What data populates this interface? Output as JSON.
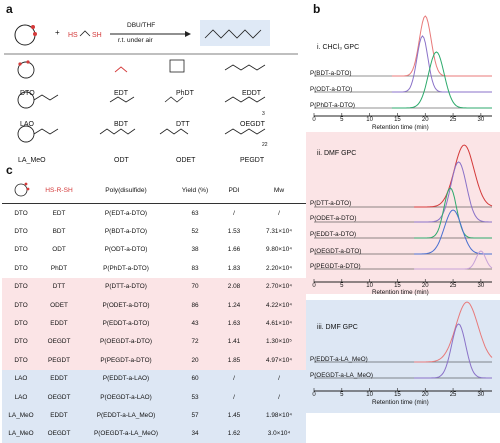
{
  "panel_a": {
    "label": "a",
    "conditions_top": "DBU/THF",
    "conditions_bottom": "r.t. under air",
    "plus": "+",
    "reagent_generic": "HS  R  SH",
    "monomers": [
      "DTO",
      "LAO",
      "LA_MeO"
    ],
    "dithiols": [
      "EDT",
      "PhDT",
      "EDDT",
      "BDT",
      "DTT",
      "OEGDT",
      "ODT",
      "ODET",
      "PEGDT"
    ],
    "peg_subscript": "22",
    "oeg_subscript": "3"
  },
  "panel_c": {
    "label": "c",
    "headers": [
      "",
      "HS‑R‑SH",
      "Poly(disulfide)",
      "Yield (%)",
      "PDI",
      "Mw"
    ],
    "rows": [
      {
        "m": "DTO",
        "d": "EDT",
        "p": "P(EDT-a-DTO)",
        "y": "63",
        "pdi": "/",
        "mw": "/"
      },
      {
        "m": "DTO",
        "d": "BDT",
        "p": "P(BDT-a-DTO)",
        "y": "52",
        "pdi": "1.53",
        "mw": "7.31×10⁴"
      },
      {
        "m": "DTO",
        "d": "ODT",
        "p": "P(ODT-a-DTO)",
        "y": "38",
        "pdi": "1.66",
        "mw": "9.80×10⁴"
      },
      {
        "m": "DTO",
        "d": "PhDT",
        "p": "P(PhDT-a-DTO)",
        "y": "83",
        "pdi": "1.83",
        "mw": "2.20×10⁴"
      },
      {
        "m": "DTO",
        "d": "DTT",
        "p": "P(DTT-a-DTO)",
        "y": "70",
        "pdi": "2.08",
        "mw": "2.70×10⁴"
      },
      {
        "m": "DTO",
        "d": "ODET",
        "p": "P(ODET-a-DTO)",
        "y": "86",
        "pdi": "1.24",
        "mw": "4.22×10⁴"
      },
      {
        "m": "DTO",
        "d": "EDDT",
        "p": "P(EDDT-a-DTO)",
        "y": "43",
        "pdi": "1.63",
        "mw": "4.61×10⁴"
      },
      {
        "m": "DTO",
        "d": "OEGDT",
        "p": "P(OEGDT-a-DTO)",
        "y": "72",
        "pdi": "1.41",
        "mw": "1.30×10⁵"
      },
      {
        "m": "DTO",
        "d": "PEGDT",
        "p": "P(PEGDT-a-DTO)",
        "y": "20",
        "pdi": "1.85",
        "mw": "4.97×10⁴"
      },
      {
        "m": "LAO",
        "d": "EDDT",
        "p": "P(EDDT-a-LAO)",
        "y": "60",
        "pdi": "/",
        "mw": "/"
      },
      {
        "m": "LAO",
        "d": "OEGDT",
        "p": "P(OEGDT-a-LAO)",
        "y": "53",
        "pdi": "/",
        "mw": "/"
      },
      {
        "m": "LA_MeO",
        "d": "EDDT",
        "p": "P(EDDT-a-LA_MeO)",
        "y": "57",
        "pdi": "1.45",
        "mw": "1.98×10⁴"
      },
      {
        "m": "LA_MeO",
        "d": "OEGDT",
        "p": "P(OEGDT-a-LA_MeO)",
        "y": "34",
        "pdi": "1.62",
        "mw": "3.0×10⁴"
      }
    ]
  },
  "panel_b": {
    "label": "b",
    "x_title": "Retention time (min)",
    "ticks": [
      "0",
      "5",
      "10",
      "15",
      "20",
      "25",
      "30"
    ],
    "panes": [
      {
        "title": "i. CHCl₃ GPC",
        "traces": [
          "P(BDT-a-DTO)",
          "P(ODT-a-DTO)",
          "P(PhDT-a-DTO)"
        ]
      },
      {
        "title": "ii. DMF GPC",
        "traces": [
          "P(DTT-a-DTO)",
          "P(ODET-a-DTO)",
          "P(EDDT-a-DTO)",
          "P(OEGDT-a-DTO)",
          "P(PEGDT-a-DTO)"
        ]
      },
      {
        "title": "iii. DMF GPC",
        "traces": [
          "P(EDDT-a-LA_MeO)",
          "P(OEGDT-a-LA_MeO)"
        ]
      }
    ]
  },
  "colors": {
    "pink_band": "#fbe4e6",
    "blue_band": "#dde7f4",
    "red": "#d43a3a",
    "green": "#2daa6c",
    "purple": "#8a72c8",
    "salmon": "#e87a7a"
  }
}
